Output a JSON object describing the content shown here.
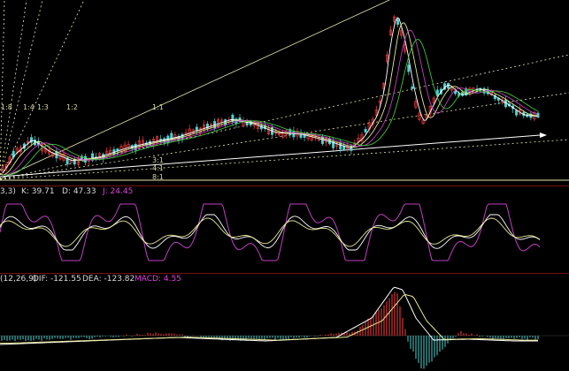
{
  "price_panel": {
    "fan_labels": [
      "1:8",
      "1:4",
      "1:3",
      "1:2",
      "1:1",
      "3:1",
      "4:1",
      "8:1"
    ]
  },
  "kdj_panel": {
    "params": "3,3)",
    "k": "K: 39.71",
    "d": "D: 47.33",
    "j": "J: 24.45"
  },
  "macd_panel": {
    "params": "(12,26,9)",
    "dif": "DIF: -121.55",
    "dea": "DEA: -123.82",
    "macd": "MACD: 4.55"
  },
  "colors": {
    "background": "#000000",
    "separator": "#7a1010",
    "label": "#d8d8d8",
    "j_label": "#e040e0",
    "macd_label": "#e040e0",
    "candle_up": "#ff4040",
    "candle_down": "#50d0d0",
    "line_white": "#ffffff",
    "line_yellow": "#e8e890",
    "line_magenta": "#c040c0",
    "line_green": "#40c040"
  }
}
